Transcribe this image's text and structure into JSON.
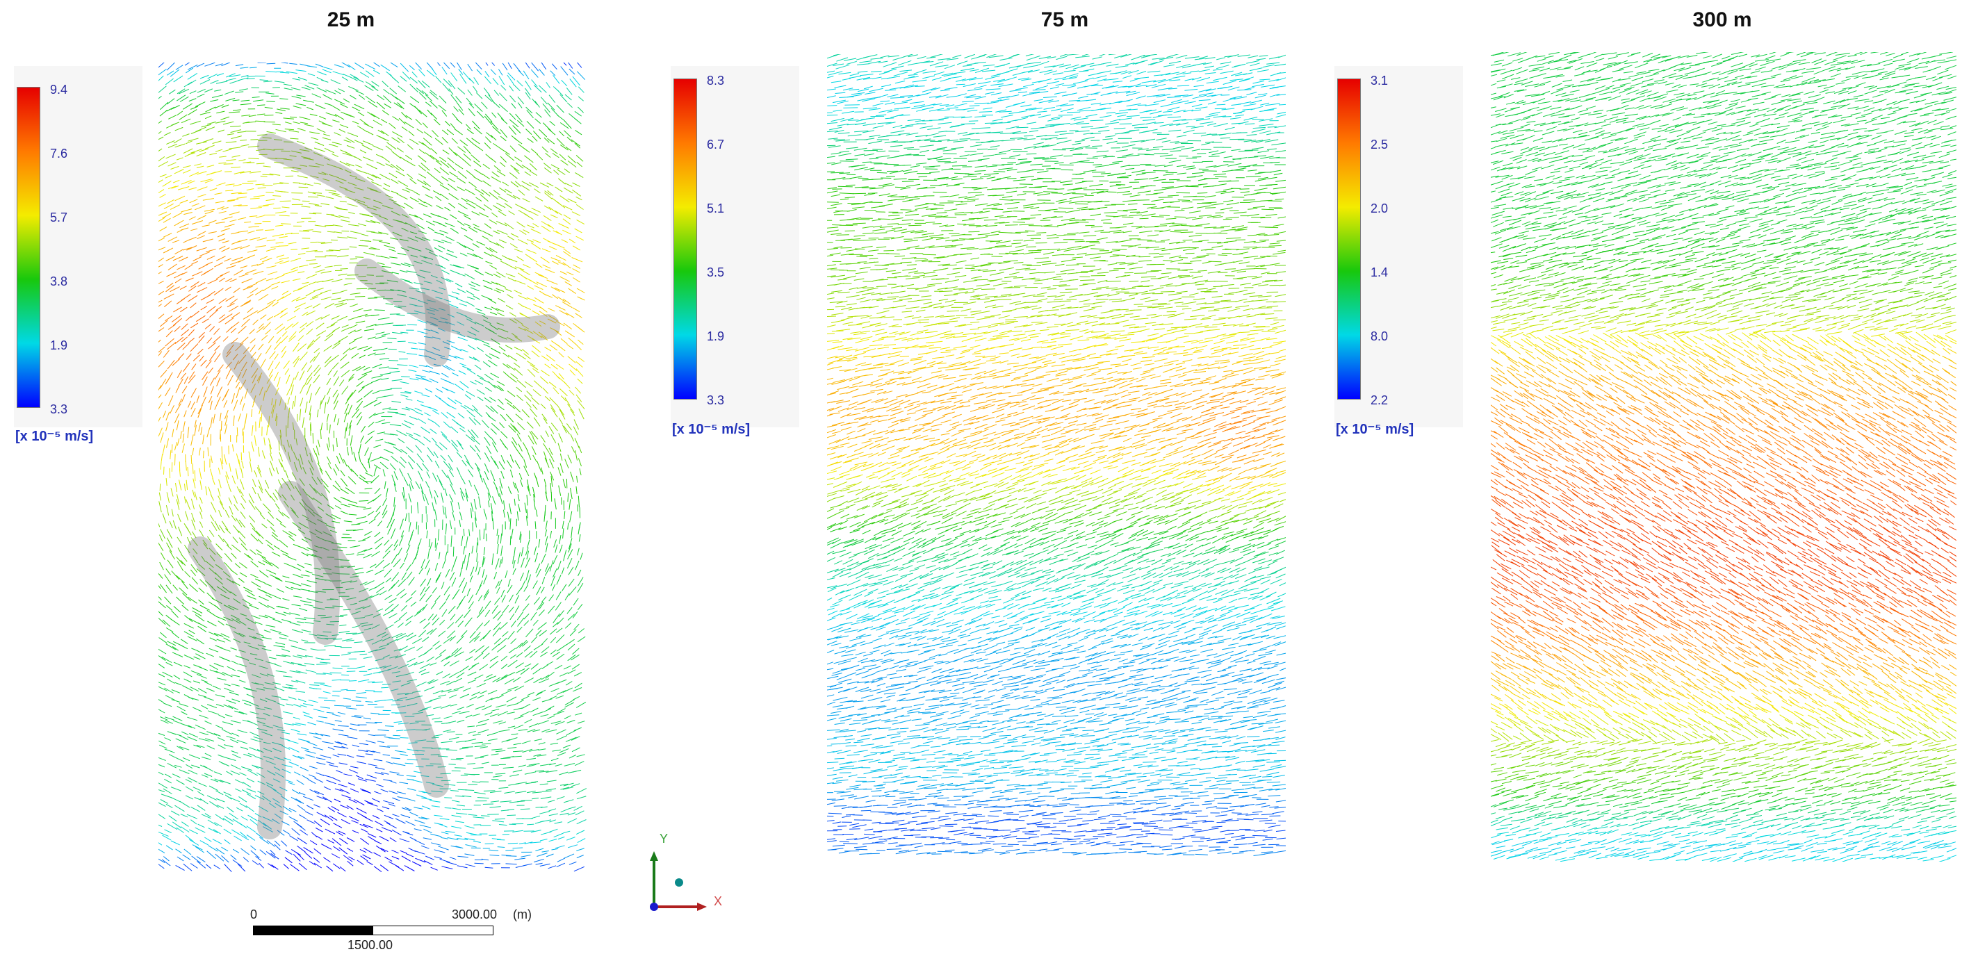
{
  "panels": [
    {
      "title": "25 m",
      "legend": {
        "ticks": [
          "9.4",
          "7.6",
          "5.7",
          "3.8",
          "1.9",
          "3.3"
        ],
        "unit": "[x 10⁻⁵ m/s]"
      }
    },
    {
      "title": "75 m",
      "legend": {
        "ticks": [
          "8.3",
          "6.7",
          "5.1",
          "3.5",
          "1.9",
          "3.3"
        ],
        "unit": "[x 10⁻⁵ m/s]"
      }
    },
    {
      "title": "300 m",
      "legend": {
        "ticks": [
          "3.1",
          "2.5",
          "2.0",
          "1.4",
          "8.0",
          "2.2"
        ],
        "unit": "[x 10⁻⁵ m/s]"
      }
    }
  ],
  "scale_bar": {
    "start": "0",
    "end": "3000.00",
    "unit": "(m)",
    "mid": "1500.00"
  },
  "axes": {
    "y": "Y",
    "x": "X"
  },
  "colors": {
    "colormap": [
      "#0000ff",
      "#00d9e6",
      "#18c80c",
      "#f4ec00",
      "#ff7a00",
      "#e60000"
    ]
  }
}
